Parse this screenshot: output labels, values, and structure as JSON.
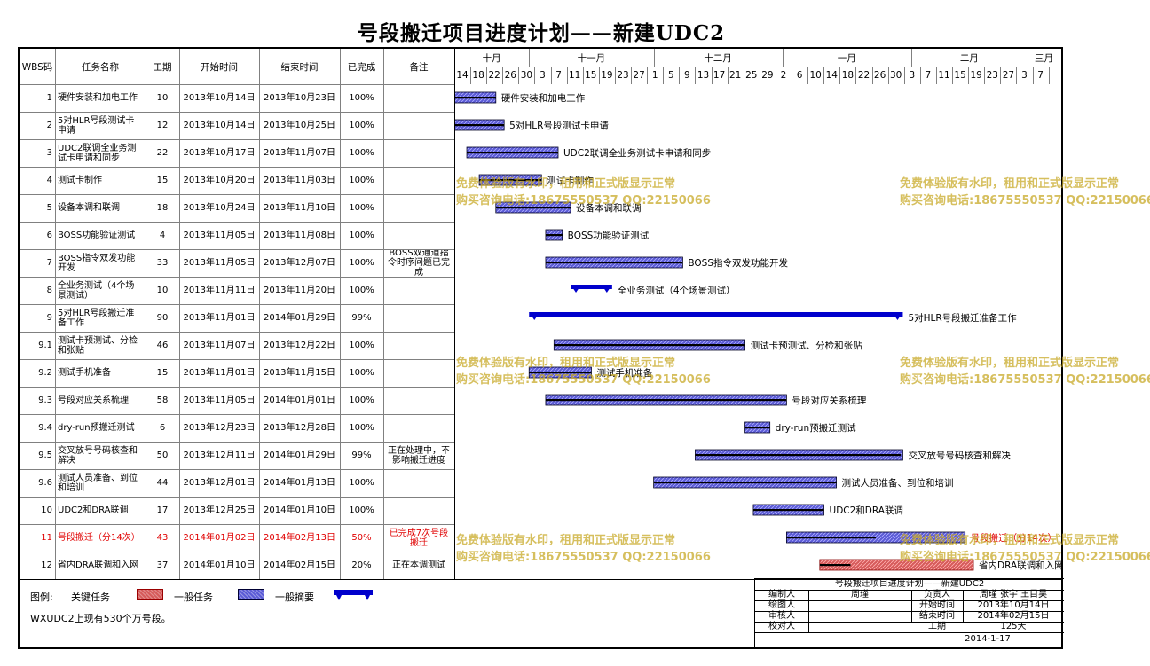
{
  "title": "号段搬迁项目进度计划——新建UDC2",
  "headers": [
    "WBS码",
    "任务名称",
    "工期",
    "开始时间",
    "结束时间",
    "已完成",
    "备注"
  ],
  "months": [
    {
      "label": "十月",
      "start": "2013-10-14",
      "end": "2013-10-31"
    },
    {
      "label": "十一月",
      "start": "2013-11-01",
      "end": "2013-11-30"
    },
    {
      "label": "十二月",
      "start": "2013-12-01",
      "end": "2013-12-31"
    },
    {
      "label": "一月",
      "start": "2014-01-01",
      "end": "2014-01-31"
    },
    {
      "label": "二月",
      "start": "2014-02-01",
      "end": "2014-02-28"
    },
    {
      "label": "三月",
      "start": "2014-03-01",
      "end": "2014-03-08"
    }
  ],
  "day_ticks": [
    "14",
    "18",
    "22",
    "26",
    "30",
    "3",
    "7",
    "11",
    "15",
    "19",
    "23",
    "27",
    "1",
    "5",
    "9",
    "13",
    "17",
    "21",
    "25",
    "29",
    "2",
    "6",
    "10",
    "14",
    "18",
    "22",
    "26",
    "30",
    "3",
    "7",
    "11",
    "15",
    "19",
    "23",
    "27",
    "3",
    "7"
  ],
  "chart_data": {
    "type": "gantt",
    "title": "号段搬迁项目进度计划——新建UDC2",
    "x_range": [
      "2013-10-14",
      "2014-03-08"
    ],
    "tasks": [
      {
        "wbs": "1",
        "name": "硬件安装和加电工作",
        "duration": "10",
        "start": "2013年10月14日",
        "end": "2013年10月23日",
        "start_date": "2013-10-14",
        "end_date": "2013-10-23",
        "done": "100%",
        "note": "",
        "kind": "normal",
        "label": "硬件安装和加电工作"
      },
      {
        "wbs": "2",
        "name": "5对HLR号段测试卡申请",
        "duration": "12",
        "start": "2013年10月14日",
        "end": "2013年10月25日",
        "start_date": "2013-10-14",
        "end_date": "2013-10-25",
        "done": "100%",
        "note": "",
        "kind": "normal",
        "label": "5对HLR号段测试卡申请"
      },
      {
        "wbs": "3",
        "name": "UDC2联调全业务测试卡申请和同步",
        "duration": "22",
        "start": "2013年10月17日",
        "end": "2013年11月07日",
        "start_date": "2013-10-17",
        "end_date": "2013-11-07",
        "done": "100%",
        "note": "",
        "kind": "normal",
        "label": "UDC2联调全业务测试卡申请和同步"
      },
      {
        "wbs": "4",
        "name": "测试卡制作",
        "duration": "15",
        "start": "2013年10月20日",
        "end": "2013年11月03日",
        "start_date": "2013-10-20",
        "end_date": "2013-11-03",
        "done": "100%",
        "note": "",
        "kind": "normal",
        "label": "测试卡制作"
      },
      {
        "wbs": "5",
        "name": "设备本调和联调",
        "duration": "18",
        "start": "2013年10月24日",
        "end": "2013年11月10日",
        "start_date": "2013-10-24",
        "end_date": "2013-11-10",
        "done": "100%",
        "note": "",
        "kind": "normal",
        "label": "设备本调和联调"
      },
      {
        "wbs": "6",
        "name": "BOSS功能验证测试",
        "duration": "4",
        "start": "2013年11月05日",
        "end": "2013年11月08日",
        "start_date": "2013-11-05",
        "end_date": "2013-11-08",
        "done": "100%",
        "note": "",
        "kind": "normal",
        "label": "BOSS功能验证测试"
      },
      {
        "wbs": "7",
        "name": "BOSS指令双发功能开发",
        "duration": "33",
        "start": "2013年11月05日",
        "end": "2013年12月07日",
        "start_date": "2013-11-05",
        "end_date": "2013-12-07",
        "done": "100%",
        "note": "BOSS双通道指令时序问题已完成",
        "kind": "normal",
        "label": "BOSS指令双发功能开发"
      },
      {
        "wbs": "8",
        "name": "全业务测试（4个场景测试）",
        "duration": "10",
        "start": "2013年11月11日",
        "end": "2013年11月20日",
        "start_date": "2013-11-11",
        "end_date": "2013-11-20",
        "done": "100%",
        "note": "",
        "kind": "summary",
        "label": "全业务测试（4个场景测试）"
      },
      {
        "wbs": "9",
        "name": "5对HLR号段搬迁准备工作",
        "duration": "90",
        "start": "2013年11月01日",
        "end": "2014年01月29日",
        "start_date": "2013-11-01",
        "end_date": "2014-01-29",
        "done": "99%",
        "note": "",
        "kind": "summary",
        "label": "5对HLR号段搬迁准备工作"
      },
      {
        "wbs": "9.1",
        "name": "测试卡预测试、分检和张贴",
        "duration": "46",
        "start": "2013年11月07日",
        "end": "2013年12月22日",
        "start_date": "2013-11-07",
        "end_date": "2013-12-22",
        "done": "100%",
        "note": "",
        "kind": "normal",
        "label": "测试卡预测试、分检和张贴"
      },
      {
        "wbs": "9.2",
        "name": "测试手机准备",
        "duration": "15",
        "start": "2013年11月01日",
        "end": "2013年11月15日",
        "start_date": "2013-11-01",
        "end_date": "2013-11-15",
        "done": "100%",
        "note": "",
        "kind": "normal",
        "label": "测试手机准备"
      },
      {
        "wbs": "9.3",
        "name": "号段对应关系梳理",
        "duration": "58",
        "start": "2013年11月05日",
        "end": "2014年01月01日",
        "start_date": "2013-11-05",
        "end_date": "2014-01-01",
        "done": "100%",
        "note": "",
        "kind": "normal",
        "label": "号段对应关系梳理"
      },
      {
        "wbs": "9.4",
        "name": "dry-run预搬迁测试",
        "duration": "6",
        "start": "2013年12月23日",
        "end": "2013年12月28日",
        "start_date": "2013-12-23",
        "end_date": "2013-12-28",
        "done": "100%",
        "note": "",
        "kind": "normal",
        "label": "dry-run预搬迁测试"
      },
      {
        "wbs": "9.5",
        "name": "交叉放号号码核查和解决",
        "duration": "50",
        "start": "2013年12月11日",
        "end": "2014年01月29日",
        "start_date": "2013-12-11",
        "end_date": "2014-01-29",
        "done": "99%",
        "note": "正在处理中，不影响搬迁进度",
        "kind": "normal",
        "label": "交叉放号号码核查和解决"
      },
      {
        "wbs": "9.6",
        "name": "测试人员准备、到位和培训",
        "duration": "44",
        "start": "2013年12月01日",
        "end": "2014年01月13日",
        "start_date": "2013-12-01",
        "end_date": "2014-01-13",
        "done": "100%",
        "note": "",
        "kind": "normal",
        "label": "测试人员准备、到位和培训"
      },
      {
        "wbs": "10",
        "name": "UDC2和DRA联调",
        "duration": "17",
        "start": "2013年12月25日",
        "end": "2014年01月10日",
        "start_date": "2013-12-25",
        "end_date": "2014-01-10",
        "done": "100%",
        "note": "",
        "kind": "normal",
        "label": "UDC2和DRA联调"
      },
      {
        "wbs": "11",
        "name": "号段搬迁（分14次）",
        "duration": "43",
        "start": "2014年01月02日",
        "end": "2014年02月13日",
        "start_date": "2014-01-02",
        "end_date": "2014-02-13",
        "done": "50%",
        "note": "已完成7次号段搬迁",
        "kind": "normal",
        "label": "号段搬迁（分14次）",
        "highlight": true
      },
      {
        "wbs": "12",
        "name": "省内DRA联调和入网",
        "duration": "37",
        "start": "2014年01月10日",
        "end": "2014年02月15日",
        "start_date": "2014-01-10",
        "end_date": "2014-02-15",
        "done": "20%",
        "note": "正在本调测试",
        "kind": "critical",
        "label": "省内DRA联调和入网"
      }
    ]
  },
  "legend": {
    "title": "图例:",
    "critical": "关键任务",
    "normal": "一般任务",
    "summary": "一般摘要",
    "note": "WXUDC2上现有530个万号段。"
  },
  "title_block": {
    "project": "号段搬迁项目进度计划——新建UDC2",
    "editor_label": "编制人",
    "editor": "周瑾",
    "drawer_label": "绘图人",
    "reviewer_label": "审核人",
    "checker_label": "校对人",
    "owner_label": "负责人",
    "owner": "周瑾 张宇 王目昊",
    "start_label": "开始时间",
    "start": "2013年10月14日",
    "end_label": "结束时间",
    "end": "2014年02月15日",
    "duration_label": "工期",
    "duration": "125天",
    "date": "2014-1-17"
  },
  "watermark": {
    "line1": "免费体验版有水印，租用和正式版显示正常",
    "line2": "购买咨询电话:18675550537 QQ:22150066"
  },
  "colors": {
    "bar_blue": "#5b5bd6",
    "bar_red": "#d65b5b",
    "summary": "#0000cc",
    "highlight_text": "#e00000"
  }
}
